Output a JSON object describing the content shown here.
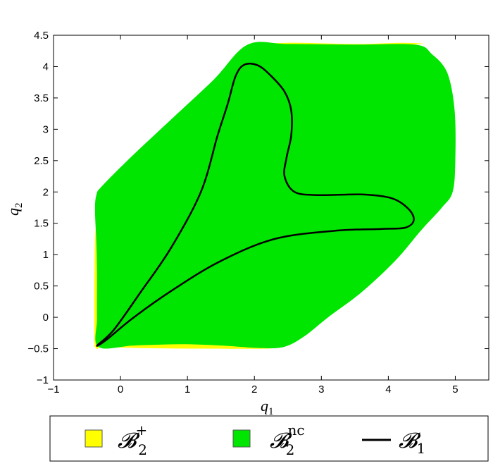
{
  "chart_data": {
    "type": "area",
    "title": "",
    "xlabel": "q",
    "xlabel_sub": "1",
    "ylabel": "q",
    "ylabel_sub": "2",
    "xlim": [
      -1,
      5.5
    ],
    "ylim": [
      -1,
      4.5
    ],
    "x_ticks": [
      -1,
      0,
      1,
      2,
      3,
      4,
      5
    ],
    "y_ticks": [
      -1,
      -0.5,
      0,
      0.5,
      1,
      1.5,
      2,
      2.5,
      3,
      3.5,
      4,
      4.5
    ],
    "x_tick_labels": [
      "−1",
      "0",
      "1",
      "2",
      "3",
      "4",
      "5"
    ],
    "y_tick_labels": [
      "−1",
      "−0.5",
      "0",
      "0.5",
      "1",
      "1.5",
      "2",
      "2.5",
      "3",
      "3.5",
      "4",
      "4.5"
    ],
    "grid": false,
    "legend_position": "bottom",
    "series": [
      {
        "name": "B2+",
        "legend_main": "𝓑",
        "legend_sub": "2",
        "legend_sup": "+",
        "kind": "filled-region",
        "color": "#ffff00",
        "regions": [
          [
            [
              -0.34,
              1.85
            ],
            [
              -0.38,
              1.2
            ],
            [
              -0.39,
              0.5
            ],
            [
              -0.39,
              -0.2
            ],
            [
              -0.38,
              -0.46
            ],
            [
              -0.32,
              -0.46
            ],
            [
              -0.3,
              0.0
            ],
            [
              -0.29,
              0.7
            ],
            [
              -0.29,
              1.4
            ],
            [
              -0.31,
              1.85
            ]
          ],
          [
            [
              -0.33,
              -0.45
            ],
            [
              0.3,
              -0.43
            ],
            [
              0.9,
              -0.4
            ],
            [
              1.5,
              -0.41
            ],
            [
              2.05,
              -0.47
            ],
            [
              2.2,
              -0.5
            ],
            [
              1.2,
              -0.5
            ],
            [
              0.3,
              -0.49
            ],
            [
              -0.32,
              -0.47
            ]
          ],
          [
            [
              1.88,
              2.16
            ],
            [
              2.15,
              2.15
            ],
            [
              2.4,
              2.05
            ],
            [
              2.55,
              1.92
            ],
            [
              2.68,
              1.8
            ],
            [
              2.35,
              1.77
            ],
            [
              2.0,
              1.74
            ],
            [
              1.85,
              1.75
            ],
            [
              1.85,
              1.95
            ]
          ],
          [
            [
              1.9,
              4.34
            ],
            [
              2.5,
              4.38
            ],
            [
              3.5,
              4.36
            ],
            [
              4.2,
              4.38
            ],
            [
              4.5,
              4.36
            ],
            [
              3.5,
              4.33
            ],
            [
              2.5,
              4.34
            ]
          ]
        ]
      },
      {
        "name": "B2nc",
        "legend_main": "𝓑",
        "legend_sub": "2",
        "legend_sup": "nc",
        "kind": "filled-region",
        "color": "#00e600",
        "regions": [
          [
            [
              -0.27,
              2.1
            ],
            [
              0.2,
              2.6
            ],
            [
              0.8,
              3.2
            ],
            [
              1.4,
              3.8
            ],
            [
              1.9,
              4.35
            ],
            [
              2.5,
              4.36
            ],
            [
              3.5,
              4.35
            ],
            [
              4.4,
              4.35
            ],
            [
              4.65,
              4.2
            ],
            [
              4.88,
              3.9
            ],
            [
              4.99,
              3.3
            ],
            [
              5.0,
              2.5
            ],
            [
              4.96,
              2.0
            ],
            [
              4.8,
              1.75
            ],
            [
              4.5,
              1.4
            ],
            [
              4.1,
              0.9
            ],
            [
              3.6,
              0.4
            ],
            [
              3.1,
              0.0
            ],
            [
              2.75,
              -0.3
            ],
            [
              2.45,
              -0.47
            ],
            [
              2.1,
              -0.49
            ],
            [
              1.5,
              -0.45
            ],
            [
              0.9,
              -0.43
            ],
            [
              0.2,
              -0.45
            ],
            [
              -0.33,
              -0.47
            ],
            [
              -0.35,
              0.0
            ],
            [
              -0.35,
              0.7
            ],
            [
              -0.36,
              1.2
            ],
            [
              -0.38,
              1.7
            ],
            [
              -0.36,
              1.95
            ]
          ]
        ]
      },
      {
        "name": "B1",
        "legend_main": "𝓑",
        "legend_sub": "1",
        "legend_sup": "",
        "kind": "closed-curve",
        "color": "#000000",
        "points": [
          [
            -0.35,
            -0.45
          ],
          [
            -0.1,
            -0.2
          ],
          [
            0.3,
            0.4
          ],
          [
            0.75,
            1.1
          ],
          [
            1.2,
            2.0
          ],
          [
            1.45,
            2.9
          ],
          [
            1.6,
            3.4
          ],
          [
            1.72,
            3.85
          ],
          [
            1.85,
            4.03
          ],
          [
            2.05,
            4.02
          ],
          [
            2.25,
            3.85
          ],
          [
            2.45,
            3.6
          ],
          [
            2.55,
            3.3
          ],
          [
            2.55,
            2.9
          ],
          [
            2.48,
            2.55
          ],
          [
            2.45,
            2.25
          ],
          [
            2.6,
            2.0
          ],
          [
            2.95,
            1.95
          ],
          [
            3.6,
            1.96
          ],
          [
            4.05,
            1.9
          ],
          [
            4.3,
            1.73
          ],
          [
            4.38,
            1.55
          ],
          [
            4.25,
            1.43
          ],
          [
            3.9,
            1.41
          ],
          [
            3.2,
            1.38
          ],
          [
            2.3,
            1.25
          ],
          [
            1.5,
            0.9
          ],
          [
            0.8,
            0.45
          ],
          [
            0.2,
            0.0
          ],
          [
            -0.2,
            -0.35
          ],
          [
            -0.35,
            -0.45
          ]
        ]
      }
    ]
  }
}
